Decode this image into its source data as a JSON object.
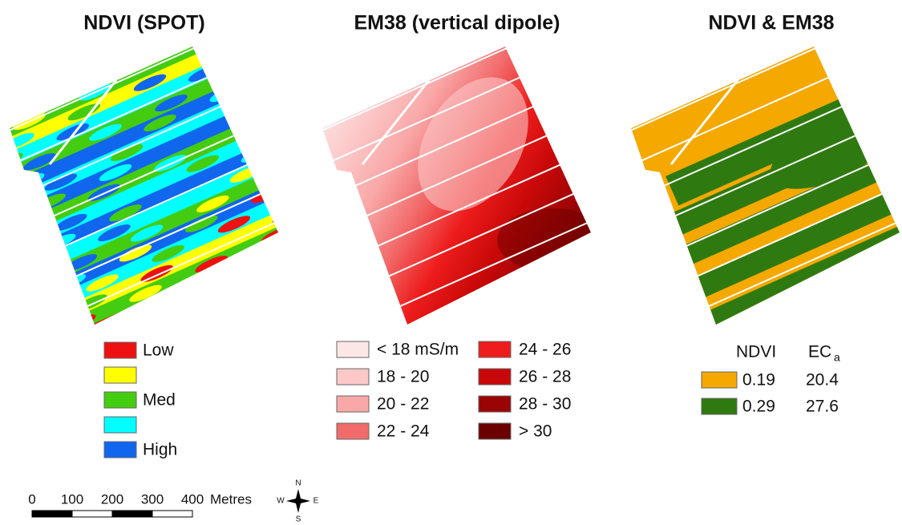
{
  "panels": [
    {
      "title": "NDVI (SPOT)",
      "legend": [
        {
          "label": "Low",
          "color": "#ee1111"
        },
        {
          "color": "#ffff00"
        },
        {
          "label": "Med",
          "color": "#44cc11"
        },
        {
          "color": "#00ffff"
        },
        {
          "label": "High",
          "color": "#1166ee"
        }
      ]
    },
    {
      "title": "EM38 (vertical dipole)",
      "legend": [
        {
          "label": "< 18 mS/m",
          "color": "#fde6e6"
        },
        {
          "label": "18 - 20",
          "color": "#fcc8c8"
        },
        {
          "label": "20 - 22",
          "color": "#f9a8a8"
        },
        {
          "label": "22 - 24",
          "color": "#f26b6b"
        },
        {
          "label": "24 - 26",
          "color": "#ee1c1c"
        },
        {
          "label": "26 - 28",
          "color": "#c80808"
        },
        {
          "label": "28 - 30",
          "color": "#9a0404"
        },
        {
          "label": "> 30",
          "color": "#6a0000"
        }
      ]
    },
    {
      "title": "NDVI & EM38",
      "legend": {
        "header": {
          "ndvi": "NDVI",
          "eca": "EC",
          "eca_sub": "a"
        },
        "rows": [
          {
            "color": "#f5a800",
            "ndvi": "0.19",
            "eca": "20.4"
          },
          {
            "color": "#2f7a10",
            "ndvi": "0.29",
            "eca": "27.6"
          }
        ]
      }
    }
  ],
  "scale_bar": {
    "labels": [
      "0",
      "100",
      "200",
      "300",
      "400"
    ],
    "unit": "Metres"
  },
  "compass": {
    "n": "N",
    "s": "S",
    "e": "E",
    "w": "W"
  }
}
